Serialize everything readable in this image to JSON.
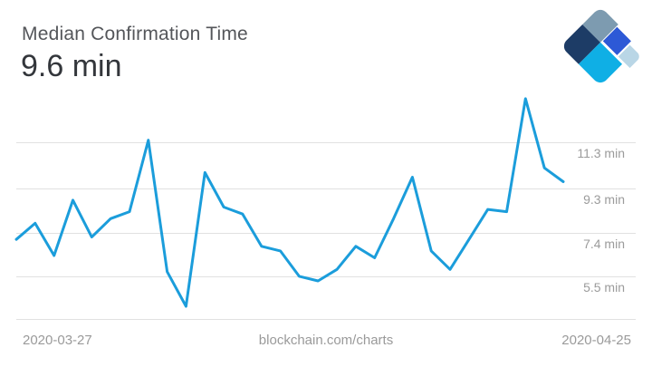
{
  "header": {
    "title": "Median Confirmation Time",
    "value": "9.6 min"
  },
  "footer": {
    "start_date": "2020-03-27",
    "watermark": "blockchain.com/charts",
    "end_date": "2020-04-25"
  },
  "logo": {
    "name": "blockchain-logo",
    "colors": {
      "slate": "#7d9bb0",
      "navy": "#1d3c66",
      "royal": "#2d59d6",
      "cyan": "#0fafe5",
      "light": "#b9d6e6"
    }
  },
  "chart_data": {
    "type": "line",
    "title": "Median Confirmation Time",
    "unit": "min",
    "x_start": "2020-03-27",
    "x_end": "2020-04-25",
    "x_points": 30,
    "values": [
      7.1,
      7.8,
      6.4,
      8.8,
      7.2,
      8.0,
      8.3,
      11.4,
      5.7,
      4.2,
      10.0,
      8.5,
      8.2,
      6.8,
      6.6,
      5.5,
      5.3,
      5.8,
      6.8,
      6.3,
      8.0,
      9.8,
      6.6,
      5.8,
      7.1,
      8.4,
      8.3,
      13.2,
      10.2,
      9.6
    ],
    "latest_value": 9.6,
    "yticks": [
      {
        "value": 11.3,
        "label": "11.3 min"
      },
      {
        "value": 9.3,
        "label": "9.3 min"
      },
      {
        "value": 7.4,
        "label": "7.4 min"
      },
      {
        "value": 5.5,
        "label": "5.5 min"
      },
      {
        "value": 3.65,
        "label": ""
      }
    ],
    "ylim": [
      3.65,
      13.55
    ],
    "xlabel": "",
    "ylabel": "",
    "legend": "none",
    "grid": "horizontal",
    "line_color": "#1b9ddb",
    "grid_color": "#e1e1e1",
    "label_color": "#9b9b9b"
  }
}
